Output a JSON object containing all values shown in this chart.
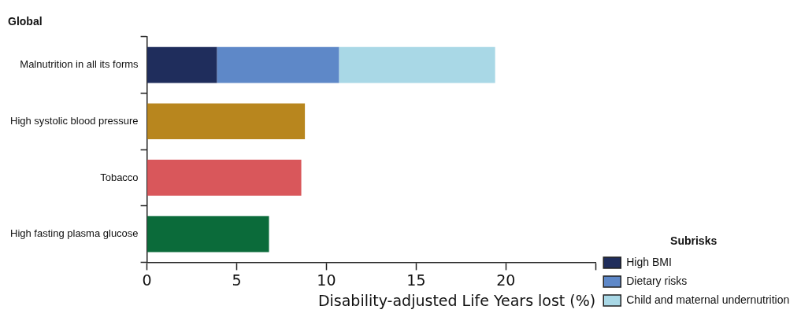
{
  "chart_data": {
    "type": "bar",
    "orientation": "horizontal",
    "stacked": true,
    "title": "Global",
    "xlabel": "Disability-adjusted Life Years lost (%)",
    "legend_title": "Subrisks",
    "legend": "right",
    "grid": false,
    "categories": [
      "Malnutrition in all its forms",
      "High systolic blood pressure",
      "Tobacco",
      "High fasting plasma glucose"
    ],
    "xlim": [
      0,
      25
    ],
    "xticks": [
      0,
      5,
      10,
      15,
      20,
      {
        "value": 25,
        "label": null
      }
    ],
    "series": [
      {
        "name": "High BMI",
        "color": "#1f2d5c",
        "values": [
          3.9,
          null,
          null,
          null
        ]
      },
      {
        "name": "Dietary risks",
        "color": "#5e88c8",
        "values": [
          6.8,
          null,
          null,
          null
        ]
      },
      {
        "name": "Child and maternal undernutrition",
        "color": "#a9d8e6",
        "values": [
          8.7,
          null,
          null,
          null
        ]
      },
      {
        "color": "#b8861e",
        "values": [
          null,
          8.8,
          null,
          null
        ]
      },
      {
        "color": "#d9575b",
        "values": [
          null,
          null,
          8.6,
          null
        ]
      },
      {
        "color": "#0b6b3a",
        "values": [
          null,
          null,
          null,
          6.8
        ]
      }
    ]
  }
}
